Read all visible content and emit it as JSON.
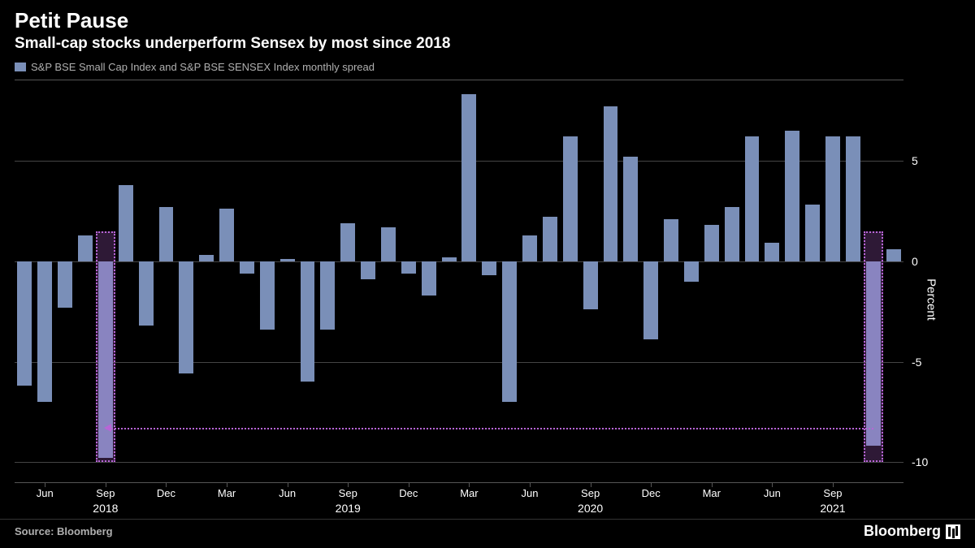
{
  "title": "Petit Pause",
  "subtitle": "Small-cap stocks underperform Sensex by most since 2018",
  "legend": "S&P BSE Small Cap Index and S&P BSE SENSEX Index monthly spread",
  "source": "Source: Bloomberg",
  "brand": "Bloomberg",
  "colors": {
    "bar": "#7a8fb8",
    "background": "#000000",
    "grid": "#444444",
    "text": "#ffffff",
    "muted": "#b0b0b0",
    "highlight": "#b865d6"
  },
  "chart": {
    "type": "bar",
    "y_axis_title": "Percent",
    "ylim": [
      -11,
      9
    ],
    "y_ticks": [
      -10,
      -5,
      0,
      5
    ],
    "values": [
      -6.2,
      -7.0,
      -2.3,
      1.3,
      -9.8,
      3.8,
      -3.2,
      2.7,
      -5.6,
      0.3,
      2.6,
      -0.6,
      -3.4,
      0.1,
      -6.0,
      -3.4,
      1.9,
      -0.9,
      1.7,
      -0.6,
      -1.7,
      0.2,
      8.3,
      -0.7,
      -7.0,
      1.3,
      2.2,
      6.2,
      -2.4,
      7.7,
      5.2,
      -3.9,
      2.1,
      -1.0,
      1.8,
      2.7,
      6.2,
      0.9,
      6.5,
      2.8,
      6.2,
      6.2,
      -9.2,
      0.6
    ],
    "x_month_ticks": [
      {
        "label": "Jun",
        "index": 1
      },
      {
        "label": "Sep",
        "index": 4
      },
      {
        "label": "Dec",
        "index": 7
      },
      {
        "label": "Mar",
        "index": 10
      },
      {
        "label": "Jun",
        "index": 13
      },
      {
        "label": "Sep",
        "index": 16
      },
      {
        "label": "Dec",
        "index": 19
      },
      {
        "label": "Mar",
        "index": 22
      },
      {
        "label": "Jun",
        "index": 25
      },
      {
        "label": "Sep",
        "index": 28
      },
      {
        "label": "Dec",
        "index": 31
      },
      {
        "label": "Mar",
        "index": 34
      },
      {
        "label": "Jun",
        "index": 37
      },
      {
        "label": "Sep",
        "index": 40
      }
    ],
    "x_year_ticks": [
      {
        "label": "2018",
        "index": 4
      },
      {
        "label": "2019",
        "index": 16
      },
      {
        "label": "2020",
        "index": 28
      },
      {
        "label": "2021",
        "index": 40
      }
    ],
    "highlights": [
      4,
      42
    ],
    "arrow": {
      "from_index": 42,
      "to_index": 4,
      "y_value": -8.3
    }
  }
}
